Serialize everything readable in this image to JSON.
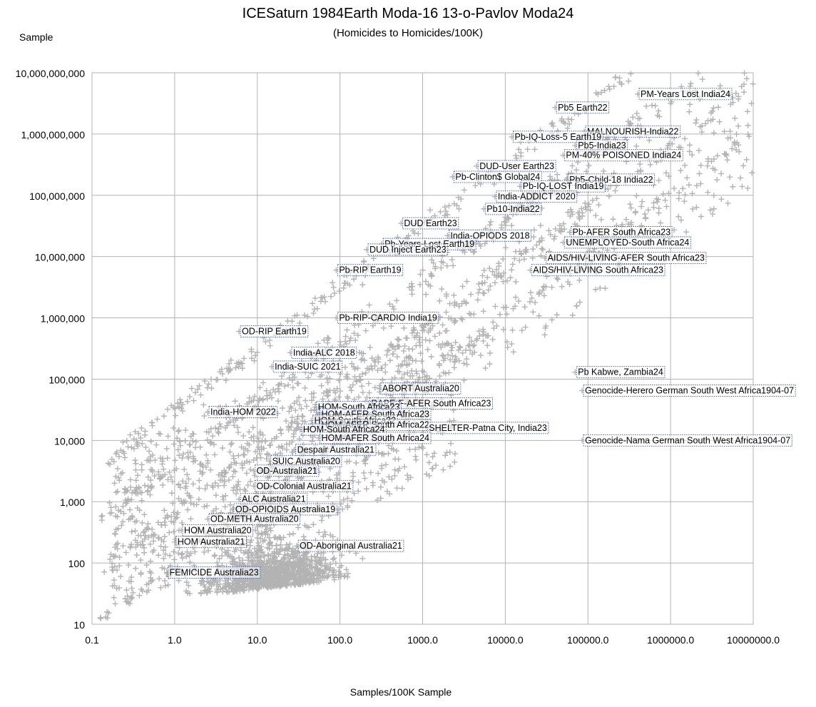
{
  "chart_data": {
    "type": "scatter",
    "title": "ICESaturn 1984Earth Moda-16 13-o-Pavlov Moda24",
    "subtitle": "(Homicides to Homicides/100K)",
    "xlabel": "Samples/100K Sample",
    "ylabel": "Sample",
    "x_scale": "log",
    "y_scale": "log",
    "xlim": [
      0.1,
      10000000
    ],
    "ylim": [
      10,
      10000000000
    ],
    "grid": true,
    "legend": "none",
    "marker": "plus",
    "marker_color": "#b3b3b3",
    "x_ticks": [
      0.1,
      1,
      10,
      100,
      1000,
      10000,
      100000,
      1000000,
      10000000
    ],
    "x_tick_labels": [
      "0.1",
      "1.0",
      "10.0",
      "100.0",
      "1000.0",
      "10000.0",
      "100000.0",
      "1000000.0",
      "10000000.0"
    ],
    "y_ticks": [
      10,
      100,
      1000,
      10000,
      100000,
      1000000,
      10000000,
      100000000,
      1000000000,
      10000000000
    ],
    "y_tick_labels": [
      "10",
      "100",
      "1,000",
      "10,000",
      "100,000",
      "1,000,000",
      "10,000,000",
      "100,000,000",
      "1,000,000,000",
      "10,000,000,000"
    ],
    "labeled_points": [
      {
        "label": "PM-Years Lost India24",
        "x": 400000,
        "y": 4500000000
      },
      {
        "label": "Pb5 Earth22",
        "x": 40000,
        "y": 2700000000
      },
      {
        "label": "MALNOURISH-India22",
        "x": 90000,
        "y": 1100000000
      },
      {
        "label": "Pb-IQ-Loss-5 Earth19",
        "x": 12000,
        "y": 900000000
      },
      {
        "label": "Pb5-India23",
        "x": 70000,
        "y": 650000000
      },
      {
        "label": "PM-40% POISONED India24",
        "x": 50000,
        "y": 450000000
      },
      {
        "label": "DUD-User Earth23",
        "x": 4500,
        "y": 300000000
      },
      {
        "label": "Pb-Clinton$ Global24",
        "x": 2300,
        "y": 200000000
      },
      {
        "label": "Pb5-Child-18 India22",
        "x": 55000,
        "y": 180000000
      },
      {
        "label": "Pb-IQ-LOST India19",
        "x": 15000,
        "y": 140000000
      },
      {
        "label": "India-ADDICT 2020",
        "x": 7500,
        "y": 95000000
      },
      {
        "label": "Pb10-India22",
        "x": 5500,
        "y": 60000000
      },
      {
        "label": "DUD Earth23",
        "x": 550,
        "y": 35000000
      },
      {
        "label": "Pb-AFER South Africa23",
        "x": 60000,
        "y": 25000000
      },
      {
        "label": "India-OPIODS 2018",
        "x": 2000,
        "y": 22000000
      },
      {
        "label": "UNEMPLOYED-South Africa24",
        "x": 50000,
        "y": 17000000
      },
      {
        "label": "Pb-Years-Lost Earth19",
        "x": 320,
        "y": 16000000
      },
      {
        "label": "DUD Inject Earth23",
        "x": 210,
        "y": 13000000
      },
      {
        "label": "AIDS/HIV-LIVING-AFER South Africa23",
        "x": 30000,
        "y": 9500000
      },
      {
        "label": "AIDS/HIV-LIVING South Africa23",
        "x": 20000,
        "y": 6000000
      },
      {
        "label": "Pb-RIP Earth19",
        "x": 90,
        "y": 6000000
      },
      {
        "label": "Pb-RIP-CARDIO India19",
        "x": 90,
        "y": 1000000
      },
      {
        "label": "OD-RIP Earth19",
        "x": 6,
        "y": 600000
      },
      {
        "label": "India-ALC 2018",
        "x": 25,
        "y": 270000
      },
      {
        "label": "India-SUIC 2021",
        "x": 15,
        "y": 160000
      },
      {
        "label": "Pb Kabwe, Zambia24",
        "x": 70000,
        "y": 130000
      },
      {
        "label": "ABORT Australia20",
        "x": 300,
        "y": 70000
      },
      {
        "label": "Genocide-Herero German South West Africa1904-07",
        "x": 85000,
        "y": 65000
      },
      {
        "label": "RAPE-F-AFER South Africa23",
        "x": 220,
        "y": 40000
      },
      {
        "label": "HOM-South Africa23",
        "x": 50,
        "y": 35000
      },
      {
        "label": "India-HOM 2022",
        "x": 2.5,
        "y": 29000
      },
      {
        "label": "HOM-AFER South Africa23",
        "x": 55,
        "y": 27000
      },
      {
        "label": "HOM-South Africa22",
        "x": 45,
        "y": 21000
      },
      {
        "label": "HOM-AFER South Africa22",
        "x": 55,
        "y": 18000
      },
      {
        "label": "SHELTER-Patna City, India23",
        "x": 1100,
        "y": 16000
      },
      {
        "label": "HOM-South Africa24",
        "x": 33,
        "y": 15000
      },
      {
        "label": "HOM-AFER South Africa24",
        "x": 55,
        "y": 11000
      },
      {
        "label": "Genocide-Nama German South West Africa1904-07",
        "x": 85000,
        "y": 10000
      },
      {
        "label": "Despair Australia21",
        "x": 28,
        "y": 7000
      },
      {
        "label": "SUIC Australia20",
        "x": 14,
        "y": 4600
      },
      {
        "label": "OD-Australia21",
        "x": 9,
        "y": 3200
      },
      {
        "label": "OD-Colonial Australia21",
        "x": 9,
        "y": 1800
      },
      {
        "label": "ALC Australia21",
        "x": 6,
        "y": 1100
      },
      {
        "label": "OD-OPIOIDS Australia19",
        "x": 5,
        "y": 750
      },
      {
        "label": "OD-METH Australia20",
        "x": 2.5,
        "y": 520
      },
      {
        "label": "HOM Australia20",
        "x": 1.2,
        "y": 340
      },
      {
        "label": "HOM Australia21",
        "x": 1,
        "y": 220
      },
      {
        "label": "OD-Aboriginal Australia21",
        "x": 30,
        "y": 190
      },
      {
        "label": "FEMICIDE Australia23",
        "x": 0.8,
        "y": 70
      }
    ]
  }
}
